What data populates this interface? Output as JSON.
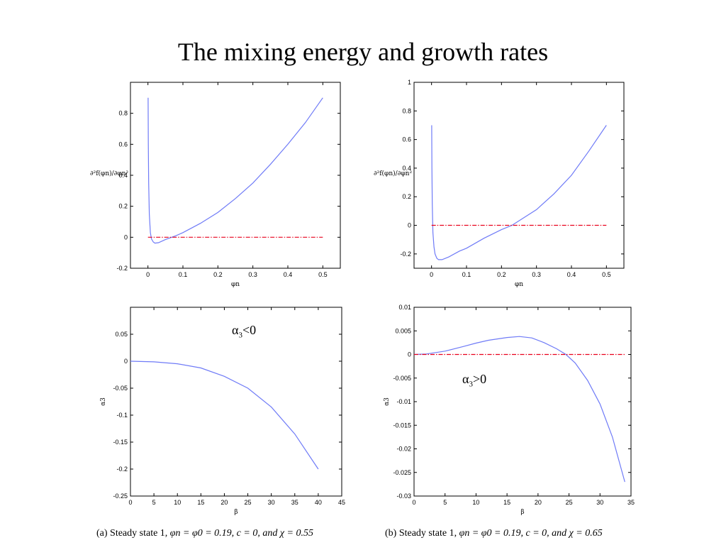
{
  "title": "The mixing energy and growth rates",
  "chart_data": [
    {
      "id": "a-top",
      "type": "line",
      "xlabel": "φn",
      "ylabel": "∂²f(φn)/∂φn²",
      "xlim": [
        -0.05,
        0.55
      ],
      "ylim": [
        -0.2,
        1.0
      ],
      "xticks": [
        0,
        0.1,
        0.2,
        0.3,
        0.4,
        0.5
      ],
      "xtick_labels": [
        "0",
        "0.1",
        "0.2",
        "0.3",
        "0.4",
        "0.5"
      ],
      "yticks": [
        -0.2,
        0,
        0.2,
        0.4,
        0.6,
        0.8
      ],
      "ytick_labels": [
        "-0.2",
        "0",
        "0.2",
        "0.4",
        "0.6",
        "0.8"
      ],
      "series": [
        {
          "style": "solid-blue",
          "x": [
            0.0005,
            0.001,
            0.002,
            0.004,
            0.007,
            0.01,
            0.015,
            0.02,
            0.03,
            0.05,
            0.08,
            0.1,
            0.15,
            0.2,
            0.25,
            0.3,
            0.35,
            0.4,
            0.45,
            0.5
          ],
          "y": [
            0.9,
            0.6,
            0.35,
            0.15,
            0.03,
            -0.01,
            -0.03,
            -0.038,
            -0.035,
            -0.015,
            0.01,
            0.03,
            0.09,
            0.16,
            0.25,
            0.35,
            0.47,
            0.6,
            0.74,
            0.9
          ]
        },
        {
          "style": "dashdot-red",
          "x": [
            0,
            0.5
          ],
          "y": [
            0,
            0
          ]
        }
      ]
    },
    {
      "id": "b-top",
      "type": "line",
      "xlabel": "φn",
      "ylabel": "∂²f(φn)/∂φn²",
      "xlim": [
        -0.05,
        0.55
      ],
      "ylim": [
        -0.3,
        1.0
      ],
      "xticks": [
        0,
        0.1,
        0.2,
        0.3,
        0.4,
        0.5
      ],
      "xtick_labels": [
        "0",
        "0.1",
        "0.2",
        "0.3",
        "0.4",
        "0.5"
      ],
      "yticks": [
        -0.2,
        0,
        0.2,
        0.4,
        0.6,
        0.8,
        1.0
      ],
      "ytick_labels": [
        "-0.2",
        "0",
        "0.2",
        "0.4",
        "0.6",
        "0.8",
        "1"
      ],
      "series": [
        {
          "style": "solid-blue",
          "x": [
            0.0005,
            0.001,
            0.002,
            0.004,
            0.007,
            0.01,
            0.015,
            0.02,
            0.03,
            0.05,
            0.08,
            0.1,
            0.15,
            0.2,
            0.23,
            0.3,
            0.35,
            0.4,
            0.45,
            0.5
          ],
          "y": [
            0.7,
            0.4,
            0.15,
            -0.05,
            -0.15,
            -0.2,
            -0.23,
            -0.24,
            -0.24,
            -0.22,
            -0.18,
            -0.16,
            -0.09,
            -0.03,
            0.0,
            0.11,
            0.22,
            0.35,
            0.52,
            0.7
          ]
        },
        {
          "style": "dashdot-red",
          "x": [
            0,
            0.5
          ],
          "y": [
            0,
            0
          ]
        }
      ]
    },
    {
      "id": "a-bottom",
      "type": "line",
      "xlabel": "β",
      "ylabel": "α3",
      "xlim": [
        0,
        45
      ],
      "ylim": [
        -0.25,
        0.1
      ],
      "xticks": [
        0,
        5,
        10,
        15,
        20,
        25,
        30,
        35,
        40,
        45
      ],
      "xtick_labels": [
        "0",
        "5",
        "10",
        "15",
        "20",
        "25",
        "30",
        "35",
        "40",
        "45"
      ],
      "yticks": [
        -0.25,
        -0.2,
        -0.15,
        -0.1,
        -0.05,
        0,
        0.05
      ],
      "ytick_labels": [
        "-0.25",
        "-0.2",
        "-0.15",
        "-0.1",
        "-0.05",
        "0",
        "0.05"
      ],
      "series": [
        {
          "style": "solid-blue",
          "x": [
            0,
            5,
            10,
            15,
            20,
            25,
            30,
            35,
            40
          ],
          "y": [
            0,
            -0.0012,
            -0.0047,
            -0.0125,
            -0.028,
            -0.05,
            -0.085,
            -0.135,
            -0.2
          ]
        }
      ]
    },
    {
      "id": "b-bottom",
      "type": "line",
      "xlabel": "β",
      "ylabel": "α3",
      "xlim": [
        0,
        35
      ],
      "ylim": [
        -0.03,
        0.01
      ],
      "xticks": [
        0,
        5,
        10,
        15,
        20,
        25,
        30,
        35
      ],
      "xtick_labels": [
        "0",
        "5",
        "10",
        "15",
        "20",
        "25",
        "30",
        "35"
      ],
      "yticks": [
        -0.03,
        -0.025,
        -0.02,
        -0.015,
        -0.01,
        -0.005,
        0,
        0.005,
        0.01
      ],
      "ytick_labels": [
        "-0.03",
        "-0.025",
        "-0.02",
        "-0.015",
        "-0.01",
        "-0.005",
        "0",
        "0.005",
        "0.01"
      ],
      "series": [
        {
          "style": "solid-blue",
          "x": [
            0,
            2,
            5,
            8,
            10,
            12,
            15,
            17,
            19,
            21,
            23,
            24.5,
            26,
            28,
            30,
            32,
            34
          ],
          "y": [
            0,
            0.0001,
            0.0007,
            0.0017,
            0.0024,
            0.003,
            0.0036,
            0.0038,
            0.0035,
            0.0025,
            0.0012,
            0,
            -0.0018,
            -0.0055,
            -0.0105,
            -0.0175,
            -0.027
          ]
        },
        {
          "style": "dashdot-red",
          "x": [
            0,
            34
          ],
          "y": [
            0,
            0
          ]
        }
      ]
    }
  ],
  "annotations": {
    "a_bottom": {
      "symbol": "α",
      "sub": "3",
      "text": "<0"
    },
    "b_bottom": {
      "symbol": "α",
      "sub": "3",
      "text": ">0"
    }
  },
  "captions": {
    "a": {
      "prefix": "(a)  Steady state 1, ",
      "math": "φn = φ0 = 0.19, c = 0, and χ = 0.55"
    },
    "b": {
      "prefix": "(b)  Steady state 1, ",
      "math": "φn = φ0 = 0.19, c = 0, and χ = 0.65"
    }
  },
  "colors": {
    "curve": "#6f7bf7",
    "reference": "#e8001c",
    "axis": "#000000"
  }
}
